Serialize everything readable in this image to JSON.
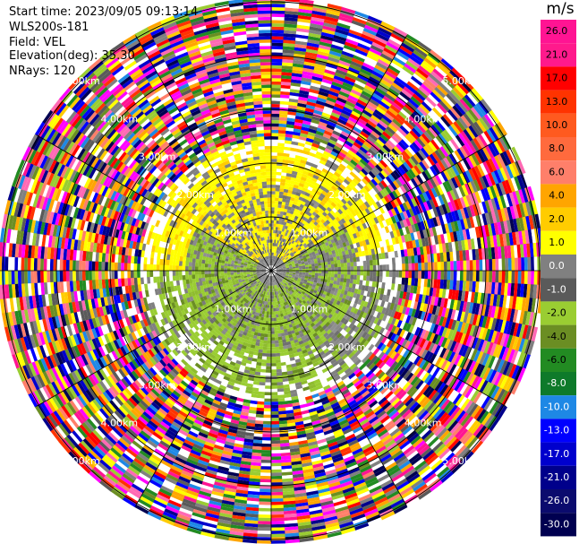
{
  "header": {
    "start_time": "Start time: 2023/09/05 09:13:14",
    "instrument": "WLS200s-181",
    "field": "Field: VEL",
    "elevation": "Elevation(deg): 35.30",
    "nrays": "NRays: 120"
  },
  "colorbar": {
    "unit": "m/s",
    "ticks": [
      "26.0",
      "21.0",
      "17.0",
      "13.0",
      "10.0",
      "8.0",
      "6.0",
      "4.0",
      "2.0",
      "1.0",
      "0.0",
      "-1.0",
      "-2.0",
      "-4.0",
      "-6.0",
      "-8.0",
      "-10.0",
      "-13.0",
      "-17.0",
      "-21.0",
      "-26.0",
      "-30.0"
    ],
    "colors": [
      "#ff1493",
      "#ff1a8c",
      "#ff0000",
      "#ff3300",
      "#ff5a1f",
      "#ff6a3d",
      "#ff7f6a",
      "#ffa500",
      "#ffcc00",
      "#ffff00",
      "#808080",
      "#5a5a5a",
      "#9acd32",
      "#6b8e23",
      "#228b22",
      "#0e7a2a",
      "#1e88e5",
      "#0000ff",
      "#0000cd",
      "#00008b",
      "#0b0b6e",
      "#000050"
    ]
  },
  "chart_data": {
    "type": "heatmap",
    "projection": "polar PPI (plan position indicator)",
    "field": "VEL",
    "nrays": 120,
    "elevation_deg": 35.3,
    "range_ring_labels": [
      "1.00km",
      "2.00km",
      "3.00km",
      "4.00km",
      "5.00km"
    ],
    "range_rings_km": [
      1,
      2,
      3,
      4,
      5
    ],
    "spoke_count": 12,
    "colorbar_range": [
      -30.0,
      26.0
    ],
    "regions": [
      {
        "range_km": [
          0,
          1.6
        ],
        "description": "grey near-zero velocities with yellow (~2 m/s) to north, olive green (~-2 m/s) to south-east"
      },
      {
        "range_km": [
          1.6,
          2.4
        ],
        "description": "yellow to the north, green/grey to the south"
      },
      {
        "range_km": [
          2.4,
          6.0
        ],
        "description": "noise: random multicolour velocity bins"
      }
    ]
  }
}
